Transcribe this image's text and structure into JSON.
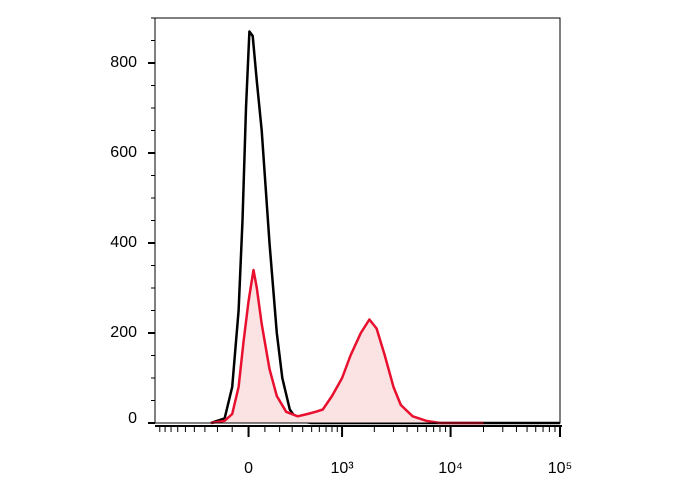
{
  "chart_data": {
    "type": "histogram-overlay",
    "x_scale": "biexponential",
    "xlim": [
      -1000,
      100000
    ],
    "ylim": [
      0,
      900
    ],
    "xticks": [
      0,
      {
        "value": 1000,
        "label": "10³"
      },
      {
        "value": 10000,
        "label": "10⁴"
      },
      {
        "value": 100000,
        "label": "10⁵"
      }
    ],
    "x_minor_ticks": [
      -900,
      -800,
      -700,
      -600,
      -500,
      -400,
      -300,
      -200,
      -100,
      100,
      200,
      300,
      400,
      500,
      600,
      700,
      800,
      900,
      2000,
      3000,
      4000,
      5000,
      6000,
      7000,
      8000,
      9000,
      20000,
      30000,
      40000,
      50000,
      60000,
      70000,
      80000,
      90000
    ],
    "yticks": [
      0,
      200,
      400,
      600,
      800
    ],
    "y_minor_ticks": [
      50,
      100,
      150,
      250,
      300,
      350,
      450,
      500,
      550,
      650,
      700,
      750,
      850,
      900
    ],
    "series": [
      {
        "color": "#000000",
        "fill": "none",
        "x": [
          -250,
          -150,
          -100,
          -60,
          -36,
          -15,
          5,
          25,
          50,
          80,
          130,
          180,
          220,
          280,
          350,
          500,
          1000,
          3000,
          100000
        ],
        "values": [
          0,
          10,
          80,
          250,
          450,
          700,
          870,
          860,
          760,
          650,
          400,
          200,
          100,
          30,
          5,
          0,
          0,
          0,
          0
        ]
      },
      {
        "color": "#e8102e",
        "fill": "#fbe3e3",
        "x": [
          -250,
          -150,
          -100,
          -60,
          -30,
          0,
          30,
          50,
          80,
          130,
          180,
          250,
          350,
          450,
          550,
          650,
          800,
          1000,
          1200,
          1500,
          1800,
          2100,
          2500,
          3000,
          3500,
          4500,
          6000,
          8000,
          20000
        ],
        "values": [
          0,
          5,
          20,
          80,
          180,
          270,
          340,
          300,
          220,
          120,
          60,
          25,
          15,
          20,
          25,
          30,
          60,
          100,
          150,
          200,
          230,
          210,
          150,
          80,
          40,
          15,
          5,
          0,
          0
        ]
      }
    ]
  }
}
